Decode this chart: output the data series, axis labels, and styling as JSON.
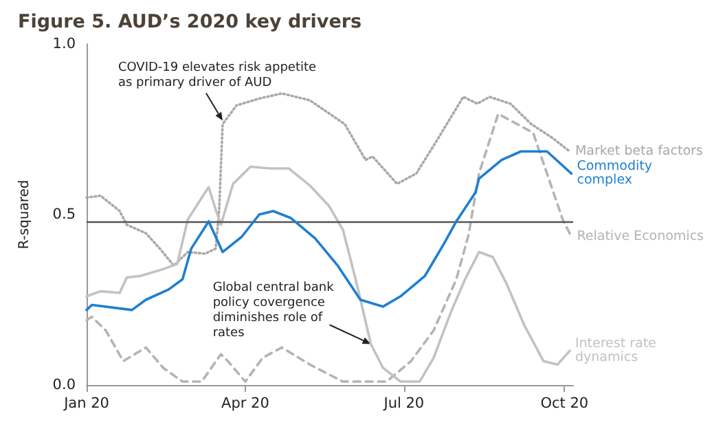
{
  "chart_data": {
    "type": "line",
    "title": "Figure 5. AUD’s 2020 key drivers",
    "ylabel": "R-squared",
    "marker": "none",
    "xlim": [
      "2020-01-01",
      "2020-10-06"
    ],
    "xticks": [
      {
        "value": "2020-01-01",
        "label": "Jan 20"
      },
      {
        "value": "2020-04-01",
        "label": "Apr 20"
      },
      {
        "value": "2020-07-01",
        "label": "Jul 20"
      },
      {
        "value": "2020-10-01",
        "label": "Oct 20"
      }
    ],
    "ylim": [
      0,
      1
    ],
    "yticks": [
      {
        "value": 0,
        "label": "0.0"
      },
      {
        "value": 0.5,
        "label": "0.5"
      },
      {
        "value": 1,
        "label": "1.0"
      }
    ],
    "ref_lines": [
      {
        "axis": "y",
        "value": 0.48,
        "color": "#555555"
      }
    ],
    "annotations": [
      {
        "text": "COVID-19 elevates risk appetite as primary driver of AUD",
        "x": "2020-03-19",
        "y": 0.775
      },
      {
        "text": "Global central bank policy covergence diminishes role of rates",
        "x": "2020-06-12",
        "y": 0.12
      }
    ],
    "series": [
      {
        "name": "Market beta factors",
        "color": "#a8a8a8",
        "line_style": "dotted",
        "x": [
          "2020-01-01",
          "2020-01-09",
          "2020-01-20",
          "2020-01-24",
          "2020-02-04",
          "2020-02-12",
          "2020-02-20",
          "2020-02-28",
          "2020-03-09",
          "2020-03-15",
          "2020-03-17",
          "2020-03-19",
          "2020-03-27",
          "2020-04-09",
          "2020-04-22",
          "2020-05-08",
          "2020-05-28",
          "2020-06-09",
          "2020-06-13",
          "2020-06-27",
          "2020-07-08",
          "2020-07-19",
          "2020-08-04",
          "2020-08-12",
          "2020-08-19",
          "2020-08-31",
          "2020-09-12",
          "2020-09-24",
          "2020-10-04"
        ],
        "values": [
          0.55,
          0.555,
          0.51,
          0.47,
          0.445,
          0.4,
          0.35,
          0.39,
          0.385,
          0.4,
          0.51,
          0.765,
          0.82,
          0.84,
          0.855,
          0.835,
          0.765,
          0.66,
          0.67,
          0.59,
          0.62,
          0.71,
          0.845,
          0.825,
          0.845,
          0.825,
          0.765,
          0.725,
          0.685
        ]
      },
      {
        "name": "Commodity complex",
        "color": "#1f7fd0",
        "line_style": "solid",
        "x": [
          "2020-01-01",
          "2020-01-04",
          "2020-01-27",
          "2020-02-04",
          "2020-02-17",
          "2020-02-25",
          "2020-03-01",
          "2020-03-11",
          "2020-03-19",
          "2020-03-30",
          "2020-04-09",
          "2020-04-17",
          "2020-04-27",
          "2020-05-11",
          "2020-05-24",
          "2020-06-06",
          "2020-06-19",
          "2020-06-29",
          "2020-07-13",
          "2020-07-24",
          "2020-07-31",
          "2020-08-11",
          "2020-08-13",
          "2020-08-26",
          "2020-09-06",
          "2020-09-21",
          "2020-10-05"
        ],
        "values": [
          0.22,
          0.235,
          0.22,
          0.25,
          0.28,
          0.31,
          0.4,
          0.48,
          0.39,
          0.435,
          0.5,
          0.51,
          0.49,
          0.43,
          0.35,
          0.25,
          0.23,
          0.26,
          0.32,
          0.415,
          0.48,
          0.565,
          0.605,
          0.66,
          0.685,
          0.685,
          0.62
        ]
      },
      {
        "name": "Relative Economics",
        "color": "#b4b4b4",
        "line_style": "dashed",
        "x": [
          "2020-01-01",
          "2020-01-04",
          "2020-01-12",
          "2020-01-22",
          "2020-02-04",
          "2020-02-14",
          "2020-02-25",
          "2020-03-07",
          "2020-03-18",
          "2020-03-22",
          "2020-04-01",
          "2020-04-11",
          "2020-04-22",
          "2020-05-08",
          "2020-05-27",
          "2020-06-21",
          "2020-07-05",
          "2020-07-18",
          "2020-07-31",
          "2020-08-07",
          "2020-08-13",
          "2020-08-24",
          "2020-09-13",
          "2020-09-23",
          "2020-09-30",
          "2020-10-05"
        ],
        "values": [
          0.19,
          0.2,
          0.16,
          0.07,
          0.11,
          0.05,
          0.01,
          0.01,
          0.09,
          0.07,
          0.01,
          0.08,
          0.11,
          0.06,
          0.01,
          0.01,
          0.07,
          0.16,
          0.31,
          0.44,
          0.62,
          0.795,
          0.74,
          0.59,
          0.485,
          0.435
        ]
      },
      {
        "name": "Interest rate dynamics",
        "color": "#c2c2c2",
        "line_style": "solid",
        "x": [
          "2020-01-01",
          "2020-01-09",
          "2020-01-20",
          "2020-01-24",
          "2020-02-01",
          "2020-02-14",
          "2020-02-22",
          "2020-02-28",
          "2020-03-04",
          "2020-03-09",
          "2020-03-11",
          "2020-03-15",
          "2020-03-18",
          "2020-03-25",
          "2020-04-04",
          "2020-04-15",
          "2020-04-26",
          "2020-05-08",
          "2020-05-19",
          "2020-05-27",
          "2020-06-04",
          "2020-06-12",
          "2020-06-19",
          "2020-06-29",
          "2020-07-10",
          "2020-07-18",
          "2020-07-28",
          "2020-08-05",
          "2020-08-13",
          "2020-08-21",
          "2020-08-29",
          "2020-09-08",
          "2020-09-19",
          "2020-09-27",
          "2020-10-04"
        ],
        "values": [
          0.26,
          0.275,
          0.27,
          0.315,
          0.32,
          0.34,
          0.355,
          0.485,
          0.525,
          0.565,
          0.58,
          0.515,
          0.47,
          0.59,
          0.64,
          0.635,
          0.635,
          0.585,
          0.525,
          0.455,
          0.295,
          0.12,
          0.05,
          0.01,
          0.01,
          0.08,
          0.215,
          0.31,
          0.39,
          0.375,
          0.295,
          0.175,
          0.07,
          0.06,
          0.1
        ]
      }
    ]
  }
}
